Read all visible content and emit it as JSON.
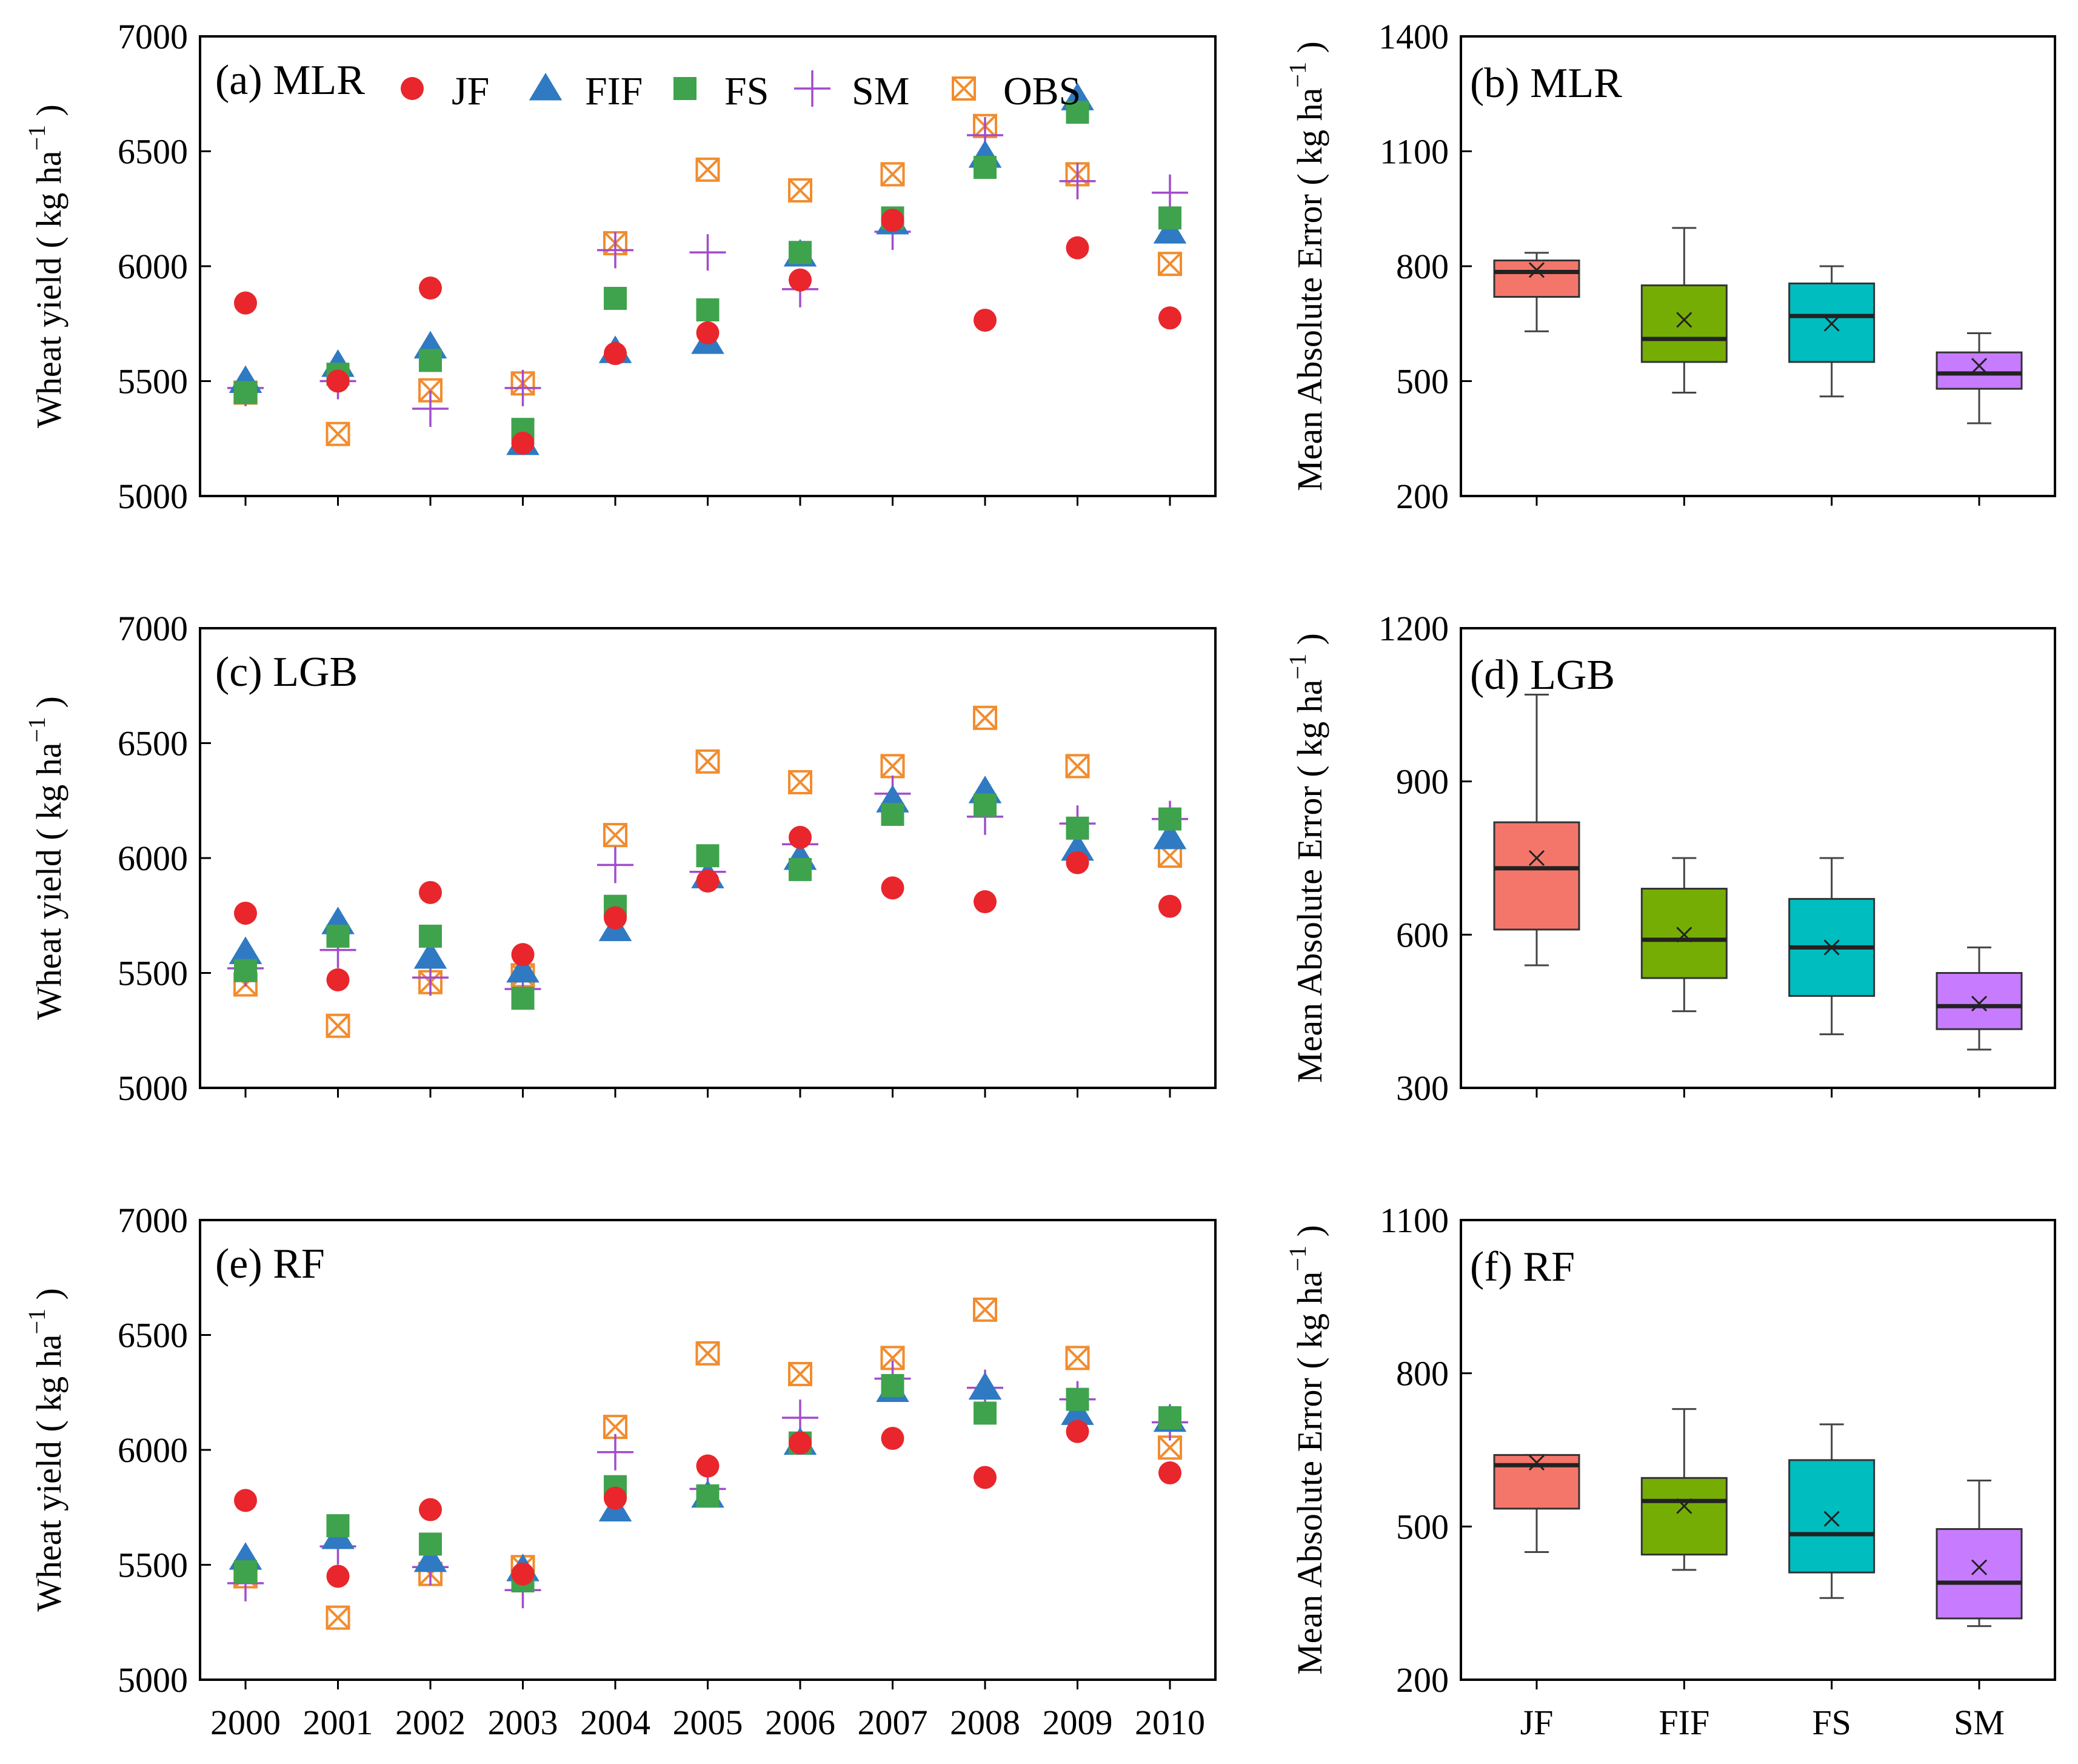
{
  "figure": "wheat yield prediction comparison",
  "series_colors": {
    "JF": "#e8262c",
    "FIF": "#2f7ac2",
    "FS": "#3fa34d",
    "SM": "#a24bcc",
    "OBS": "#f18c2e"
  },
  "box_colors": {
    "JF": "#f4766b",
    "FIF": "#76ad05",
    "FS": "#00bdc0",
    "SM": "#c77cff"
  },
  "legend": {
    "items": [
      {
        "key": "JF",
        "label": "JF",
        "symbol": "circle-icon"
      },
      {
        "key": "FIF",
        "label": "FIF",
        "symbol": "triangle-icon"
      },
      {
        "key": "FS",
        "label": "FS",
        "symbol": "square-icon"
      },
      {
        "key": "SM",
        "label": "SM",
        "symbol": "plus-icon"
      },
      {
        "key": "OBS",
        "label": "OBS",
        "symbol": "boxed-x-icon"
      }
    ]
  },
  "chart_data": [
    {
      "id": "a",
      "type": "scatter",
      "title": "(a) MLR",
      "xlabel": "",
      "ylabel": "Wheat yield ( kg ha⁻¹ )",
      "x": [
        2000,
        2001,
        2002,
        2003,
        2004,
        2005,
        2006,
        2007,
        2008,
        2009,
        2010
      ],
      "xtick_labels": [
        "",
        "",
        "",
        "",
        "",
        "",
        "",
        "",
        "",
        "",
        ""
      ],
      "ylim": [
        5000,
        7000
      ],
      "yticks": [
        5000,
        5500,
        6000,
        6500,
        7000
      ],
      "ytick_labels": [
        "5000",
        "5500",
        "6000",
        "6500",
        "7000"
      ],
      "series": [
        {
          "name": "JF",
          "values": [
            5840,
            5500,
            5905,
            5230,
            5620,
            5710,
            5940,
            6200,
            5765,
            6080,
            5775
          ]
        },
        {
          "name": "FIF",
          "values": [
            5500,
            5570,
            5650,
            5230,
            5630,
            5670,
            6050,
            6190,
            6480,
            6730,
            6150
          ]
        },
        {
          "name": "FS",
          "values": [
            5450,
            5530,
            5590,
            5290,
            5860,
            5810,
            6060,
            6210,
            6430,
            6670,
            6210
          ]
        },
        {
          "name": "SM",
          "values": [
            5470,
            5500,
            5380,
            5470,
            6070,
            6060,
            5900,
            6150,
            6570,
            6370,
            6320
          ]
        },
        {
          "name": "OBS",
          "values": [
            5450,
            5270,
            5460,
            5490,
            6100,
            6420,
            6330,
            6400,
            6610,
            6400,
            6010
          ]
        }
      ]
    },
    {
      "id": "b",
      "type": "box",
      "title": "(b) MLR",
      "xlabel": "",
      "ylabel": "Mean Absolute Error ( kg ha⁻¹ )",
      "categories": [
        "JF",
        "FIF",
        "FS",
        "SM"
      ],
      "category_labels": [
        "",
        "",
        "",
        ""
      ],
      "ylim": [
        200,
        1400
      ],
      "yticks": [
        200,
        500,
        800,
        1100,
        1400
      ],
      "ytick_labels": [
        "200",
        "500",
        "800",
        "1100",
        "1400"
      ],
      "boxes": [
        {
          "name": "JF",
          "min": 630,
          "q1": 720,
          "median": 785,
          "q3": 815,
          "max": 835,
          "mean": 790
        },
        {
          "name": "FIF",
          "min": 470,
          "q1": 550,
          "median": 610,
          "q3": 750,
          "max": 900,
          "mean": 660
        },
        {
          "name": "FS",
          "min": 460,
          "q1": 550,
          "median": 670,
          "q3": 755,
          "max": 800,
          "mean": 650
        },
        {
          "name": "SM",
          "min": 390,
          "q1": 480,
          "median": 520,
          "q3": 575,
          "max": 625,
          "mean": 540
        }
      ]
    },
    {
      "id": "c",
      "type": "scatter",
      "title": "(c) LGB",
      "xlabel": "",
      "ylabel": "Wheat yield ( kg ha⁻¹ )",
      "x": [
        2000,
        2001,
        2002,
        2003,
        2004,
        2005,
        2006,
        2007,
        2008,
        2009,
        2010
      ],
      "xtick_labels": [
        "",
        "",
        "",
        "",
        "",
        "",
        "",
        "",
        "",
        "",
        ""
      ],
      "ylim": [
        5000,
        7000
      ],
      "yticks": [
        5000,
        5500,
        6000,
        6500,
        7000
      ],
      "ytick_labels": [
        "5000",
        "5500",
        "6000",
        "6500",
        "7000"
      ],
      "series": [
        {
          "name": "JF",
          "values": [
            5760,
            5470,
            5850,
            5580,
            5740,
            5900,
            6090,
            5870,
            5810,
            5980,
            5790
          ]
        },
        {
          "name": "FIF",
          "values": [
            5590,
            5720,
            5570,
            5510,
            5690,
            5920,
            6000,
            6250,
            6290,
            6040,
            6090
          ]
        },
        {
          "name": "FS",
          "values": [
            5510,
            5660,
            5660,
            5390,
            5790,
            6010,
            5950,
            6190,
            6230,
            6130,
            6170
          ]
        },
        {
          "name": "SM",
          "values": [
            5520,
            5600,
            5480,
            5430,
            5970,
            5940,
            6060,
            6280,
            6180,
            6150,
            6170
          ]
        },
        {
          "name": "OBS",
          "values": [
            5450,
            5270,
            5460,
            5490,
            6100,
            6420,
            6330,
            6400,
            6610,
            6400,
            6010
          ]
        }
      ]
    },
    {
      "id": "d",
      "type": "box",
      "title": "(d) LGB",
      "xlabel": "",
      "ylabel": "Mean Absolute Error ( kg ha⁻¹ )",
      "categories": [
        "JF",
        "FIF",
        "FS",
        "SM"
      ],
      "category_labels": [
        "",
        "",
        "",
        ""
      ],
      "ylim": [
        300,
        1200
      ],
      "yticks": [
        300,
        600,
        900,
        1200
      ],
      "ytick_labels": [
        "300",
        "600",
        "900",
        "1200"
      ],
      "boxes": [
        {
          "name": "JF",
          "min": 540,
          "q1": 610,
          "median": 730,
          "q3": 820,
          "max": 1070,
          "mean": 750
        },
        {
          "name": "FIF",
          "min": 450,
          "q1": 515,
          "median": 590,
          "q3": 690,
          "max": 750,
          "mean": 600
        },
        {
          "name": "FS",
          "min": 405,
          "q1": 480,
          "median": 575,
          "q3": 670,
          "max": 750,
          "mean": 575
        },
        {
          "name": "SM",
          "min": 375,
          "q1": 415,
          "median": 460,
          "q3": 525,
          "max": 575,
          "mean": 465
        }
      ]
    },
    {
      "id": "e",
      "type": "scatter",
      "title": "(e) RF",
      "xlabel": "",
      "ylabel": "Wheat yield ( kg ha⁻¹ )",
      "x": [
        2000,
        2001,
        2002,
        2003,
        2004,
        2005,
        2006,
        2007,
        2008,
        2009,
        2010
      ],
      "xtick_labels": [
        "2000",
        "2001",
        "2002",
        "2003",
        "2004",
        "2005",
        "2006",
        "2007",
        "2008",
        "2009",
        "2010"
      ],
      "ylim": [
        5000,
        7000
      ],
      "yticks": [
        5000,
        5500,
        6000,
        6500,
        7000
      ],
      "ytick_labels": [
        "5000",
        "5500",
        "6000",
        "6500",
        "7000"
      ],
      "series": [
        {
          "name": "JF",
          "values": [
            5780,
            5450,
            5740,
            5460,
            5790,
            5930,
            6030,
            6050,
            5880,
            6080,
            5900
          ]
        },
        {
          "name": "FIF",
          "values": [
            5530,
            5620,
            5520,
            5480,
            5740,
            5800,
            6030,
            6260,
            6270,
            6160,
            6130
          ]
        },
        {
          "name": "FS",
          "values": [
            5470,
            5670,
            5590,
            5430,
            5840,
            5800,
            6030,
            6280,
            6160,
            6220,
            6140
          ]
        },
        {
          "name": "SM",
          "values": [
            5420,
            5580,
            5490,
            5390,
            5990,
            5830,
            6140,
            6310,
            6270,
            6220,
            6120
          ]
        },
        {
          "name": "OBS",
          "values": [
            5450,
            5270,
            5460,
            5490,
            6100,
            6420,
            6330,
            6400,
            6610,
            6400,
            6010
          ]
        }
      ]
    },
    {
      "id": "f",
      "type": "box",
      "title": "(f) RF",
      "xlabel": "",
      "ylabel": "Mean Absolute Error ( kg ha⁻¹ )",
      "categories": [
        "JF",
        "FIF",
        "FS",
        "SM"
      ],
      "category_labels": [
        "JF",
        "FIF",
        "FS",
        "SM"
      ],
      "ylim": [
        200,
        1100
      ],
      "yticks": [
        200,
        500,
        800,
        1100
      ],
      "ytick_labels": [
        "200",
        "500",
        "800",
        "1100"
      ],
      "boxes": [
        {
          "name": "JF",
          "min": 450,
          "q1": 535,
          "median": 620,
          "q3": 640,
          "max": 640,
          "mean": 625
        },
        {
          "name": "FIF",
          "min": 415,
          "q1": 445,
          "median": 550,
          "q3": 595,
          "max": 730,
          "mean": 540
        },
        {
          "name": "FS",
          "min": 360,
          "q1": 410,
          "median": 485,
          "q3": 630,
          "max": 700,
          "mean": 515
        },
        {
          "name": "SM",
          "min": 305,
          "q1": 320,
          "median": 390,
          "q3": 495,
          "max": 590,
          "mean": 420
        }
      ]
    }
  ]
}
